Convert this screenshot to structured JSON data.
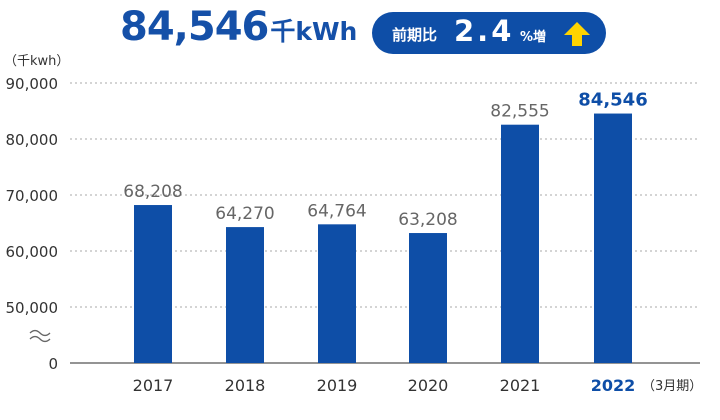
{
  "headline": {
    "value": "84,546",
    "unit": "千kWh"
  },
  "badge": {
    "label": "前期比",
    "value": "2.4",
    "suffix": "%増",
    "icon": "up-arrow-icon",
    "arrow_color": "#ffd400"
  },
  "colors": {
    "bar": "#0e4ea7",
    "highlight": "#0e4ea7",
    "value_label": "#666666",
    "axis_text": "#333333",
    "grid": "#aaaaaa"
  },
  "chart_data": {
    "type": "bar",
    "categories": [
      "2017",
      "2018",
      "2019",
      "2020",
      "2021",
      "2022"
    ],
    "values": [
      68208,
      64270,
      64764,
      63208,
      82555,
      84546
    ],
    "value_labels": [
      "68,208",
      "64,270",
      "64,764",
      "63,208",
      "82,555",
      "84,546"
    ],
    "highlight_index": 5,
    "ylabel": "（千kwh）",
    "xlabel_suffix": "（3月期）",
    "yticks": [
      {
        "value": 0,
        "label": "0"
      },
      {
        "value": 50000,
        "label": "50,000"
      },
      {
        "value": 60000,
        "label": "60,000"
      },
      {
        "value": 70000,
        "label": "70,000"
      },
      {
        "value": 80000,
        "label": "80,000"
      },
      {
        "value": 90000,
        "label": "90,000"
      }
    ],
    "ylim": [
      0,
      90000
    ],
    "axis_break": {
      "from": 0,
      "to": 50000
    },
    "grid": true
  }
}
